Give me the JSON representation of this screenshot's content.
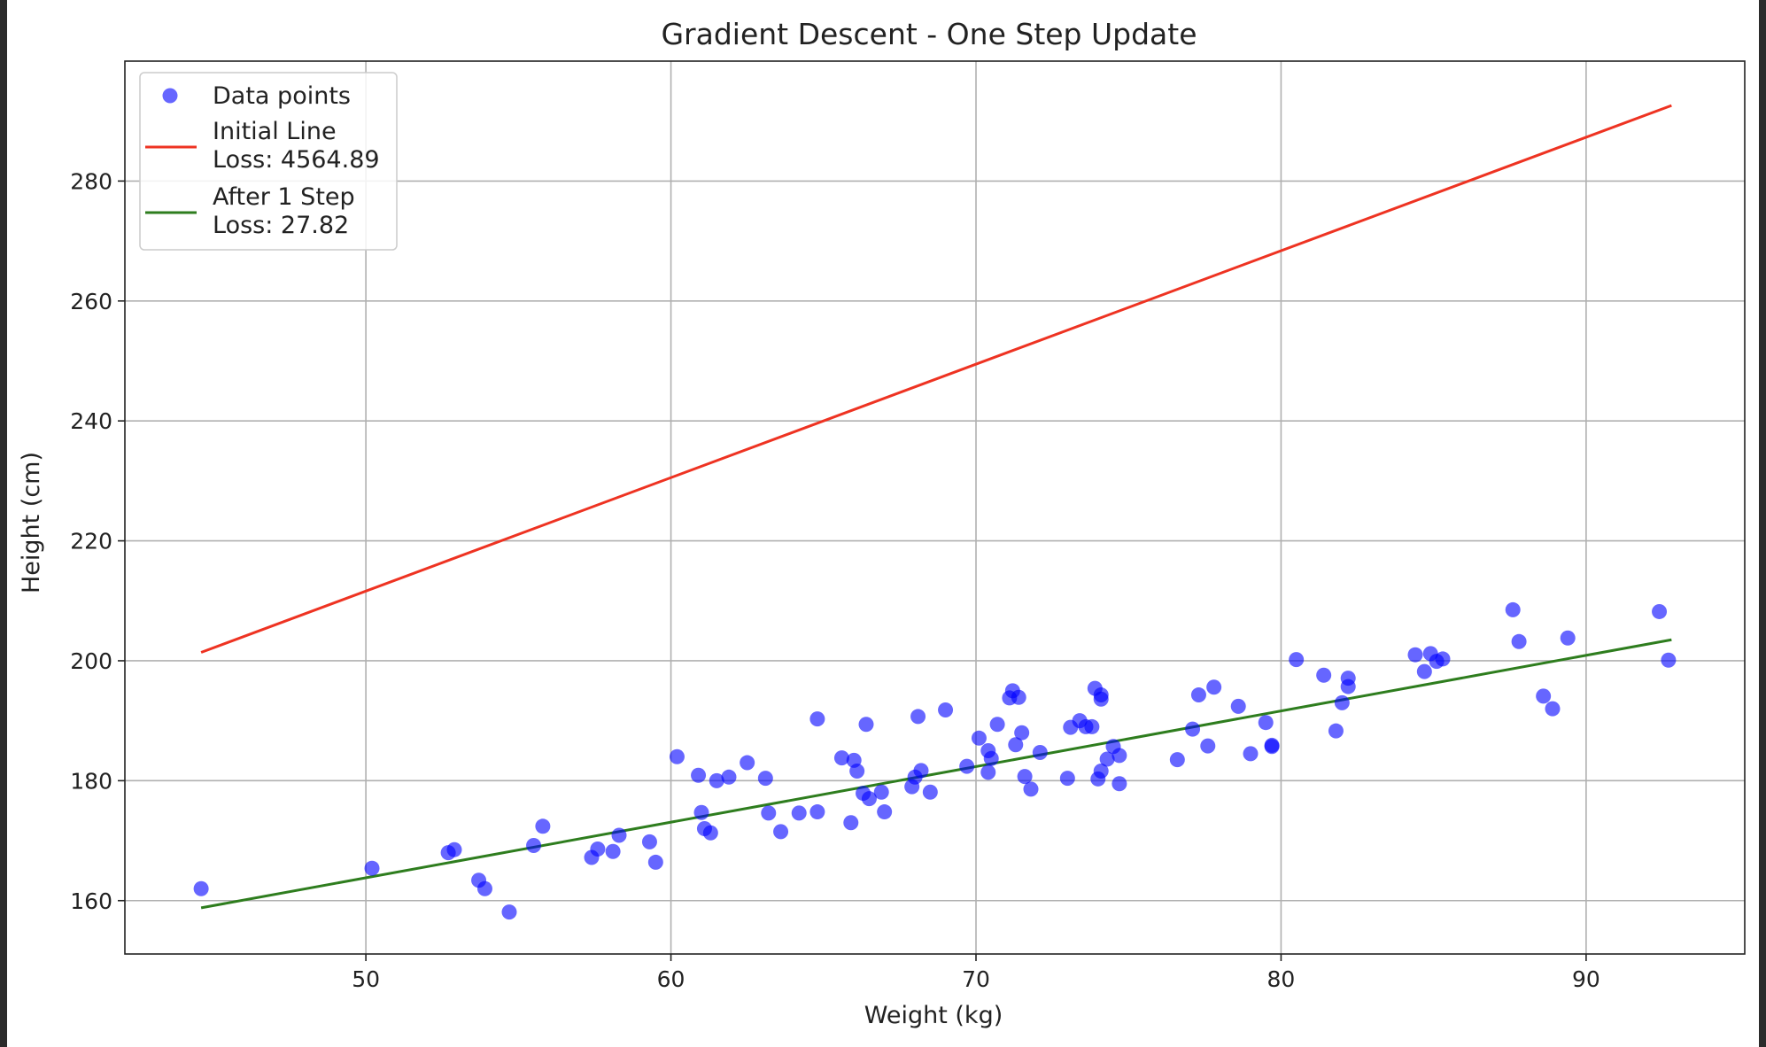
{
  "chart_data": {
    "type": "scatter",
    "title": "Gradient Descent - One Step Update",
    "xlabel": "Weight (kg)",
    "ylabel": "Height (cm)",
    "xlim": [
      42.1,
      95.2
    ],
    "ylim": [
      151.1,
      300.0
    ],
    "xticks": [
      50,
      60,
      70,
      80,
      90
    ],
    "yticks": [
      160,
      180,
      200,
      220,
      240,
      260,
      280
    ],
    "grid": true,
    "legend_position": "top-left",
    "series": [
      {
        "name": "Data points",
        "kind": "scatter",
        "color": "#0000ff",
        "points": [
          [
            44.6,
            162.0
          ],
          [
            50.2,
            165.4
          ],
          [
            52.7,
            168.0
          ],
          [
            52.9,
            168.5
          ],
          [
            53.7,
            163.4
          ],
          [
            53.9,
            162.0
          ],
          [
            54.7,
            158.1
          ],
          [
            55.5,
            169.2
          ],
          [
            55.8,
            172.4
          ],
          [
            57.4,
            167.2
          ],
          [
            57.6,
            168.6
          ],
          [
            58.1,
            168.2
          ],
          [
            58.3,
            170.9
          ],
          [
            59.3,
            169.8
          ],
          [
            59.5,
            166.4
          ],
          [
            60.2,
            184.0
          ],
          [
            60.9,
            180.9
          ],
          [
            61.0,
            174.7
          ],
          [
            61.1,
            172.0
          ],
          [
            61.3,
            171.3
          ],
          [
            61.5,
            180.0
          ],
          [
            61.9,
            180.6
          ],
          [
            62.5,
            183.0
          ],
          [
            63.1,
            180.4
          ],
          [
            63.2,
            174.6
          ],
          [
            63.6,
            171.5
          ],
          [
            64.2,
            174.6
          ],
          [
            64.8,
            174.8
          ],
          [
            64.8,
            190.3
          ],
          [
            65.6,
            183.8
          ],
          [
            65.9,
            173.0
          ],
          [
            66.0,
            183.4
          ],
          [
            66.1,
            181.6
          ],
          [
            66.4,
            189.4
          ],
          [
            66.3,
            177.9
          ],
          [
            66.5,
            177.0
          ],
          [
            66.9,
            178.1
          ],
          [
            67.0,
            174.8
          ],
          [
            67.9,
            179.0
          ],
          [
            68.0,
            180.6
          ],
          [
            68.1,
            190.7
          ],
          [
            68.2,
            181.7
          ],
          [
            68.5,
            178.1
          ],
          [
            69.0,
            191.8
          ],
          [
            69.7,
            182.4
          ],
          [
            70.1,
            187.1
          ],
          [
            70.4,
            181.4
          ],
          [
            70.4,
            185.0
          ],
          [
            70.5,
            183.7
          ],
          [
            70.7,
            189.4
          ],
          [
            71.1,
            193.8
          ],
          [
            71.2,
            195.0
          ],
          [
            71.3,
            186.0
          ],
          [
            71.4,
            193.9
          ],
          [
            71.5,
            188.0
          ],
          [
            71.6,
            180.7
          ],
          [
            71.8,
            178.6
          ],
          [
            72.1,
            184.7
          ],
          [
            73.0,
            180.4
          ],
          [
            73.1,
            188.9
          ],
          [
            73.4,
            190.0
          ],
          [
            73.6,
            189.0
          ],
          [
            73.8,
            189.0
          ],
          [
            73.9,
            195.4
          ],
          [
            74.0,
            180.3
          ],
          [
            74.1,
            193.6
          ],
          [
            74.1,
            181.6
          ],
          [
            74.1,
            194.3
          ],
          [
            74.3,
            183.6
          ],
          [
            74.5,
            185.7
          ],
          [
            74.7,
            179.5
          ],
          [
            74.7,
            184.2
          ],
          [
            76.6,
            183.5
          ],
          [
            77.1,
            188.6
          ],
          [
            77.3,
            194.3
          ],
          [
            77.6,
            185.8
          ],
          [
            77.8,
            195.6
          ],
          [
            78.6,
            192.4
          ],
          [
            79.0,
            184.5
          ],
          [
            79.5,
            189.7
          ],
          [
            79.7,
            185.9
          ],
          [
            79.7,
            185.7
          ],
          [
            80.5,
            200.2
          ],
          [
            81.4,
            197.6
          ],
          [
            81.8,
            188.3
          ],
          [
            82.0,
            193.0
          ],
          [
            82.2,
            195.7
          ],
          [
            82.2,
            197.1
          ],
          [
            84.4,
            201.0
          ],
          [
            84.7,
            198.2
          ],
          [
            84.9,
            201.2
          ],
          [
            85.1,
            199.9
          ],
          [
            85.3,
            200.3
          ],
          [
            87.6,
            208.5
          ],
          [
            87.8,
            203.2
          ],
          [
            88.6,
            194.1
          ],
          [
            88.9,
            192.0
          ],
          [
            89.4,
            203.8
          ],
          [
            92.4,
            208.2
          ],
          [
            92.7,
            200.1
          ]
        ]
      },
      {
        "name": "Initial Line",
        "loss_label": "Loss: 4564.89",
        "kind": "line",
        "color": "#ee3322",
        "x": [
          44.6,
          92.8
        ],
        "y": [
          201.4,
          292.6
        ]
      },
      {
        "name": "After 1 Step",
        "loss_label": "Loss: 27.82",
        "kind": "line",
        "color": "#2e7d1e",
        "x": [
          44.6,
          92.8
        ],
        "y": [
          158.8,
          203.5
        ]
      }
    ]
  }
}
